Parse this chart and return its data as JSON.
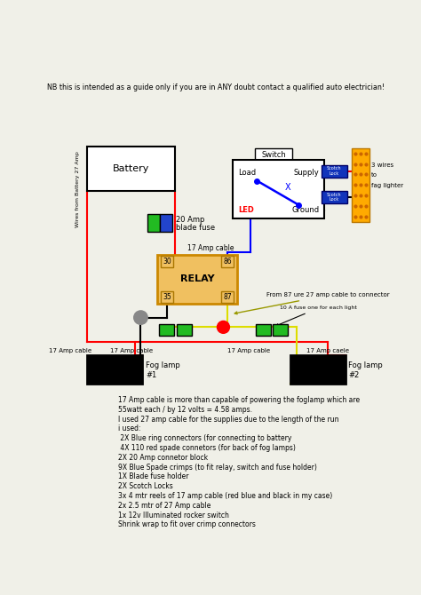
{
  "bg_color": "#f0f0e8",
  "title_text": "NB this is intended as a guide only if you are in ANY doubt contact a qualified auto electrician!",
  "notes": [
    "17 Amp cable is more than capable of powering the foglamp which are",
    "55watt each / by 12 volts = 4.58 amps.",
    "I used 27 amp cable for the supplies due to the length of the run",
    "i used:",
    " 2X Blue ring connectors (for connecting to battery",
    " 4X 110 red spade connetors (for back of fog lamps)",
    "2X 20 Amp connetor block",
    "9X Blue Spade crimps (to fit relay, switch and fuse holder)",
    "1X Blade fuse holder",
    "2X Scotch Locks",
    "3x 4 mtr reels of 17 amp cable (red blue and black in my case)",
    "2x 2.5 mtr of 27 Amp cable",
    "1x 12v Illuminated rocker switch",
    "Shrink wrap to fit over crimp connectors"
  ]
}
